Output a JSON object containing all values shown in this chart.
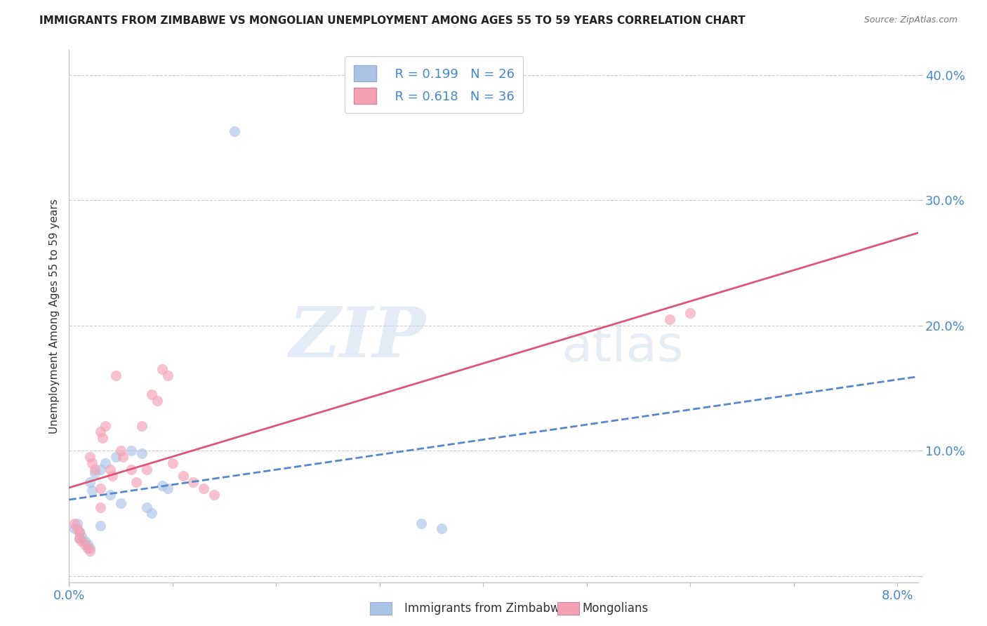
{
  "title": "IMMIGRANTS FROM ZIMBABWE VS MONGOLIAN UNEMPLOYMENT AMONG AGES 55 TO 59 YEARS CORRELATION CHART",
  "source": "Source: ZipAtlas.com",
  "ylabel": "Unemployment Among Ages 55 to 59 years",
  "xlim": [
    0.0,
    0.082
  ],
  "ylim": [
    -0.005,
    0.42
  ],
  "legend_r1": "R = 0.199",
  "legend_n1": "N = 26",
  "legend_r2": "R = 0.618",
  "legend_n2": "N = 36",
  "color_blue": "#aac4e8",
  "color_pink": "#f5a0b5",
  "color_blue_line": "#5588cc",
  "color_pink_line": "#dd5577",
  "color_text_blue": "#4488cc",
  "watermark_zip": "ZIP",
  "watermark_atlas": "atlas",
  "background_color": "#ffffff",
  "grid_color": "#cccccc",
  "zim_x": [
    0.0005,
    0.0008,
    0.001,
    0.001,
    0.0012,
    0.0015,
    0.0018,
    0.002,
    0.002,
    0.0022,
    0.0025,
    0.003,
    0.003,
    0.0035,
    0.004,
    0.0045,
    0.005,
    0.006,
    0.007,
    0.0075,
    0.008,
    0.009,
    0.034,
    0.036,
    0.0095,
    0.016
  ],
  "zim_y": [
    0.038,
    0.042,
    0.035,
    0.03,
    0.032,
    0.028,
    0.025,
    0.022,
    0.075,
    0.068,
    0.082,
    0.085,
    0.04,
    0.09,
    0.065,
    0.095,
    0.058,
    0.1,
    0.098,
    0.055,
    0.05,
    0.072,
    0.042,
    0.038,
    0.07,
    0.355
  ],
  "mon_x": [
    0.0005,
    0.0008,
    0.001,
    0.001,
    0.0012,
    0.0015,
    0.0018,
    0.002,
    0.002,
    0.0022,
    0.0025,
    0.003,
    0.003,
    0.0032,
    0.0035,
    0.004,
    0.0042,
    0.0045,
    0.005,
    0.0052,
    0.006,
    0.0065,
    0.007,
    0.0075,
    0.008,
    0.0085,
    0.009,
    0.0095,
    0.01,
    0.011,
    0.012,
    0.013,
    0.014,
    0.003,
    0.058,
    0.06
  ],
  "mon_y": [
    0.042,
    0.038,
    0.035,
    0.03,
    0.028,
    0.025,
    0.022,
    0.02,
    0.095,
    0.09,
    0.085,
    0.115,
    0.055,
    0.11,
    0.12,
    0.085,
    0.08,
    0.16,
    0.1,
    0.095,
    0.085,
    0.075,
    0.12,
    0.085,
    0.145,
    0.14,
    0.165,
    0.16,
    0.09,
    0.08,
    0.075,
    0.07,
    0.065,
    0.07,
    0.205,
    0.21
  ]
}
